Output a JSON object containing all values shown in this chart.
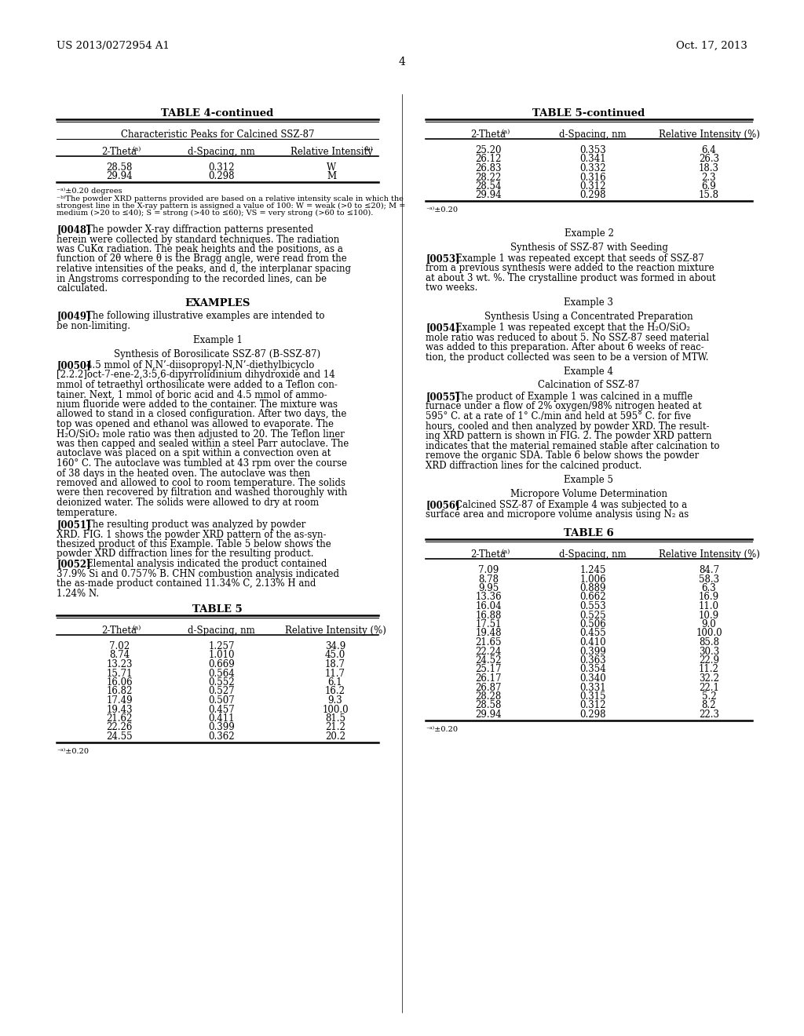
{
  "header_left": "US 2013/0272954 A1",
  "header_right": "Oct. 17, 2013",
  "page_number": "4",
  "table4_title": "TABLE 4-continued",
  "table4_subtitle": "Characteristic Peaks for Calcined SSZ-87",
  "table4_data": [
    [
      "28.58",
      "0.312",
      "W"
    ],
    [
      "29.94",
      "0.298",
      "M"
    ]
  ],
  "table5cont_title": "TABLE 5-continued",
  "table5cont_data": [
    [
      "25.20",
      "0.353",
      "6.4"
    ],
    [
      "26.12",
      "0.341",
      "26.3"
    ],
    [
      "26.83",
      "0.332",
      "18.3"
    ],
    [
      "28.22",
      "0.316",
      "2.3"
    ],
    [
      "28.54",
      "0.312",
      "6.9"
    ],
    [
      "29.94",
      "0.298",
      "15.8"
    ]
  ],
  "table5_title": "TABLE 5",
  "table5_data": [
    [
      "7.02",
      "1.257",
      "34.9"
    ],
    [
      "8.74",
      "1.010",
      "45.0"
    ],
    [
      "13.23",
      "0.669",
      "18.7"
    ],
    [
      "15.71",
      "0.564",
      "11.7"
    ],
    [
      "16.06",
      "0.552",
      "6.1"
    ],
    [
      "16.82",
      "0.527",
      "16.2"
    ],
    [
      "17.49",
      "0.507",
      "9.3"
    ],
    [
      "19.43",
      "0.457",
      "100.0"
    ],
    [
      "21.62",
      "0.411",
      "81.5"
    ],
    [
      "22.26",
      "0.399",
      "21.2"
    ],
    [
      "24.55",
      "0.362",
      "20.2"
    ]
  ],
  "table6_title": "TABLE 6",
  "table6_data": [
    [
      "7.09",
      "1.245",
      "84.7"
    ],
    [
      "8.78",
      "1.006",
      "58.3"
    ],
    [
      "9.95",
      "0.889",
      "6.3"
    ],
    [
      "13.36",
      "0.662",
      "16.9"
    ],
    [
      "16.04",
      "0.553",
      "11.0"
    ],
    [
      "16.88",
      "0.525",
      "10.9"
    ],
    [
      "17.51",
      "0.506",
      "9.0"
    ],
    [
      "19.48",
      "0.455",
      "100.0"
    ],
    [
      "21.65",
      "0.410",
      "85.8"
    ],
    [
      "22.24",
      "0.399",
      "30.3"
    ],
    [
      "24.52",
      "0.363",
      "22.9"
    ],
    [
      "25.17",
      "0.354",
      "11.2"
    ],
    [
      "26.17",
      "0.340",
      "32.2"
    ],
    [
      "26.87",
      "0.331",
      "22.1"
    ],
    [
      "28.28",
      "0.315",
      "5.2"
    ],
    [
      "28.58",
      "0.312",
      "8.2"
    ],
    [
      "29.94",
      "0.298",
      "22.3"
    ]
  ],
  "left_col_lines": [
    {
      "type": "para",
      "label": "[0048]",
      "lines": [
        "The powder X-ray diffraction patterns presented",
        "herein were collected by standard techniques. The radiation",
        "was CuKα radiation. The peak heights and the positions, as a",
        "function of 2θ where θ is the Bragg angle, were read from the",
        "relative intensities of the peaks, and d, the interplanar spacing",
        "in Angstroms corresponding to the recorded lines, can be",
        "calculated."
      ]
    },
    {
      "type": "section",
      "text": "EXAMPLES"
    },
    {
      "type": "para",
      "label": "[0049]",
      "lines": [
        "The following illustrative examples are intended to",
        "be non-limiting."
      ]
    },
    {
      "type": "center",
      "text": "Example 1"
    },
    {
      "type": "center",
      "text": "Synthesis of Borosilicate SSZ-87 (B-SSZ-87)"
    },
    {
      "type": "para",
      "label": "[0050]",
      "lines": [
        "4.5 mmol of N,N’-diisopropyl-N,N’-diethylbicyclo",
        "[2.2.2]oct-7-ene-2,3:5,6-dipyrrolidinium dihydroxide and 14",
        "mmol of tetraethyl orthosilicate were added to a Teflon con-",
        "tainer. Next, 1 mmol of boric acid and 4.5 mmol of ammo-",
        "nium fluoride were added to the container. The mixture was",
        "allowed to stand in a closed configuration. After two days, the",
        "top was opened and ethanol was allowed to evaporate. The",
        "H₂O/SiO₂ mole ratio was then adjusted to 20. The Teflon liner",
        "was then capped and sealed within a steel Parr autoclave. The",
        "autoclave was placed on a spit within a convection oven at",
        "160° C. The autoclave was tumbled at 43 rpm over the course",
        "of 38 days in the heated oven. The autoclave was then",
        "removed and allowed to cool to room temperature. The solids",
        "were then recovered by filtration and washed thoroughly with",
        "deionized water. The solids were allowed to dry at room",
        "temperature."
      ]
    },
    {
      "type": "para_cont",
      "label": "[0051]",
      "lines": [
        "The resulting product was analyzed by powder",
        "XRD. FIG. 1 shows the powder XRD pattern of the as-syn-",
        "thesized product of this Example. Table 5 below shows the",
        "powder XRD diffraction lines for the resulting product."
      ]
    },
    {
      "type": "para_cont",
      "label": "[0052]",
      "lines": [
        "Elemental analysis indicated the product contained",
        "37.9% Si and 0.757% B. CHN combustion analysis indicated",
        "the as-made product contained 11.34% C, 2.13% H and",
        "1.24% N."
      ]
    }
  ],
  "right_col_lines": [
    {
      "type": "center",
      "text": "Example 2"
    },
    {
      "type": "center",
      "text": "Synthesis of SSZ-87 with Seeding"
    },
    {
      "type": "para",
      "label": "[0053]",
      "lines": [
        "Example 1 was repeated except that seeds of SSZ-87",
        "from a previous synthesis were added to the reaction mixture",
        "at about 3 wt. %. The crystalline product was formed in about",
        "two weeks."
      ]
    },
    {
      "type": "center",
      "text": "Example 3"
    },
    {
      "type": "center",
      "text": "Synthesis Using a Concentrated Preparation"
    },
    {
      "type": "para",
      "label": "[0054]",
      "lines": [
        "Example 1 was repeated except that the H₂O/SiO₂",
        "mole ratio was reduced to about 5. No SSZ-87 seed material",
        "was added to this preparation. After about 6 weeks of reac-",
        "tion, the product collected was seen to be a version of MTW."
      ]
    },
    {
      "type": "center",
      "text": "Example 4"
    },
    {
      "type": "center",
      "text": "Calcination of SSZ-87"
    },
    {
      "type": "para",
      "label": "[0055]",
      "lines": [
        "The product of Example 1 was calcined in a muffle",
        "furnace under a flow of 2% oxygen/98% nitrogen heated at",
        "595° C. at a rate of 1° C./min and held at 595° C. for five",
        "hours, cooled and then analyzed by powder XRD. The result-",
        "ing XRD pattern is shown in FIG. 2. The powder XRD pattern",
        "indicates that the material remained stable after calcination to",
        "remove the organic SDA. Table 6 below shows the powder",
        "XRD diffraction lines for the calcined product."
      ]
    },
    {
      "type": "center",
      "text": "Example 5"
    },
    {
      "type": "center",
      "text": "Micropore Volume Determination"
    },
    {
      "type": "para",
      "label": "[0056]",
      "lines": [
        "Calcined SSZ-87 of Example 4 was subjected to a",
        "surface area and micropore volume analysis using N₂ as"
      ]
    }
  ]
}
